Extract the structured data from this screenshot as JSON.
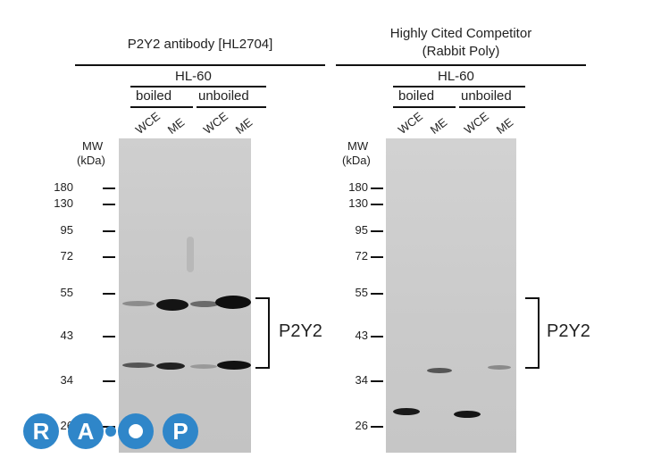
{
  "left_panel": {
    "title": "P2Y2 antibody [HL2704]",
    "cell_line": "HL-60",
    "group1": "boiled",
    "group2": "unboiled",
    "lanes": [
      "WCE",
      "ME",
      "WCE",
      "ME"
    ],
    "mw_header_1": "MW",
    "mw_header_2": "(kDa)",
    "markers": [
      "180",
      "130",
      "95",
      "72",
      "55",
      "43",
      "34",
      "26"
    ],
    "target_label": "P2Y2"
  },
  "right_panel": {
    "title_line1": "Highly Cited Competitor",
    "title_line2": "(Rabbit Poly)",
    "cell_line": "HL-60",
    "group1": "boiled",
    "group2": "unboiled",
    "lanes": [
      "WCE",
      "ME",
      "WCE",
      "ME"
    ],
    "mw_header_1": "MW",
    "mw_header_2": "(kDa)",
    "markers": [
      "180",
      "130",
      "95",
      "72",
      "55",
      "43",
      "34",
      "26"
    ],
    "target_label": "P2Y2"
  },
  "colors": {
    "blot_bg": "#c9c9c9",
    "band_dark": "#111111",
    "logo_blue": "#2f86c9"
  },
  "logo_name": "rap-logo"
}
